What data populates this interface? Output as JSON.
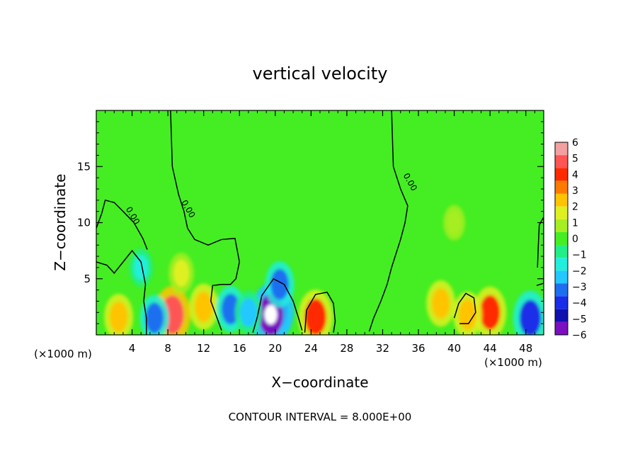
{
  "chart_data": {
    "type": "heatmap",
    "title": "vertical velocity",
    "xlabel": "X−coordinate",
    "ylabel": "Z−coordinate",
    "x_unit": "(×1000 m)",
    "x_unit_right": "(×1000 m)",
    "xlim": [
      0,
      50
    ],
    "ylim": [
      0,
      20
    ],
    "x_ticks": [
      "4",
      "8",
      "12",
      "16",
      "20",
      "24",
      "28",
      "32",
      "36",
      "40",
      "44",
      "48"
    ],
    "y_ticks": [
      "5",
      "10",
      "15"
    ],
    "footer": "CONTOUR INTERVAL = 8.000E+00",
    "contour_label": "0.00",
    "colorbar": {
      "labels": [
        "6",
        "5",
        "4",
        "3",
        "2",
        "1",
        "0",
        "−1",
        "−2",
        "−3",
        "−4",
        "−5",
        "−6"
      ],
      "colors": [
        "#f4a0a0",
        "#ff5555",
        "#ff2a00",
        "#ff7a00",
        "#ffc400",
        "#dff020",
        "#a6ee22",
        "#44ee22",
        "#22ee88",
        "#22eedd",
        "#22c8ff",
        "#1e6ff0",
        "#1a2de8",
        "#1010b0",
        "#7a10c0"
      ]
    },
    "background_value": 0,
    "features": [
      {
        "x": 20,
        "z": 2.2,
        "value": -5.5
      },
      {
        "x": 19.5,
        "z": 1.8,
        "value": -6
      },
      {
        "x": 20.5,
        "z": 4.5,
        "value": -3
      },
      {
        "x": 24.5,
        "z": 1.6,
        "value": 4.5
      },
      {
        "x": 8.5,
        "z": 1.8,
        "value": 5
      },
      {
        "x": 12,
        "z": 2.5,
        "value": 3
      },
      {
        "x": 9.5,
        "z": 5.5,
        "value": 2
      },
      {
        "x": 6.5,
        "z": 1.5,
        "value": -3
      },
      {
        "x": 15,
        "z": 2.3,
        "value": -3
      },
      {
        "x": 17,
        "z": 2.0,
        "value": -2.5
      },
      {
        "x": 2.5,
        "z": 1.6,
        "value": 3
      },
      {
        "x": 44,
        "z": 2.0,
        "value": 4
      },
      {
        "x": 48.5,
        "z": 1.5,
        "value": -4.5
      },
      {
        "x": 38.5,
        "z": 2.8,
        "value": 3
      },
      {
        "x": 41.5,
        "z": 1.8,
        "value": 3
      },
      {
        "x": 40,
        "z": 10,
        "value": 1
      },
      {
        "x": 5,
        "z": 6,
        "value": -1.5
      }
    ]
  }
}
